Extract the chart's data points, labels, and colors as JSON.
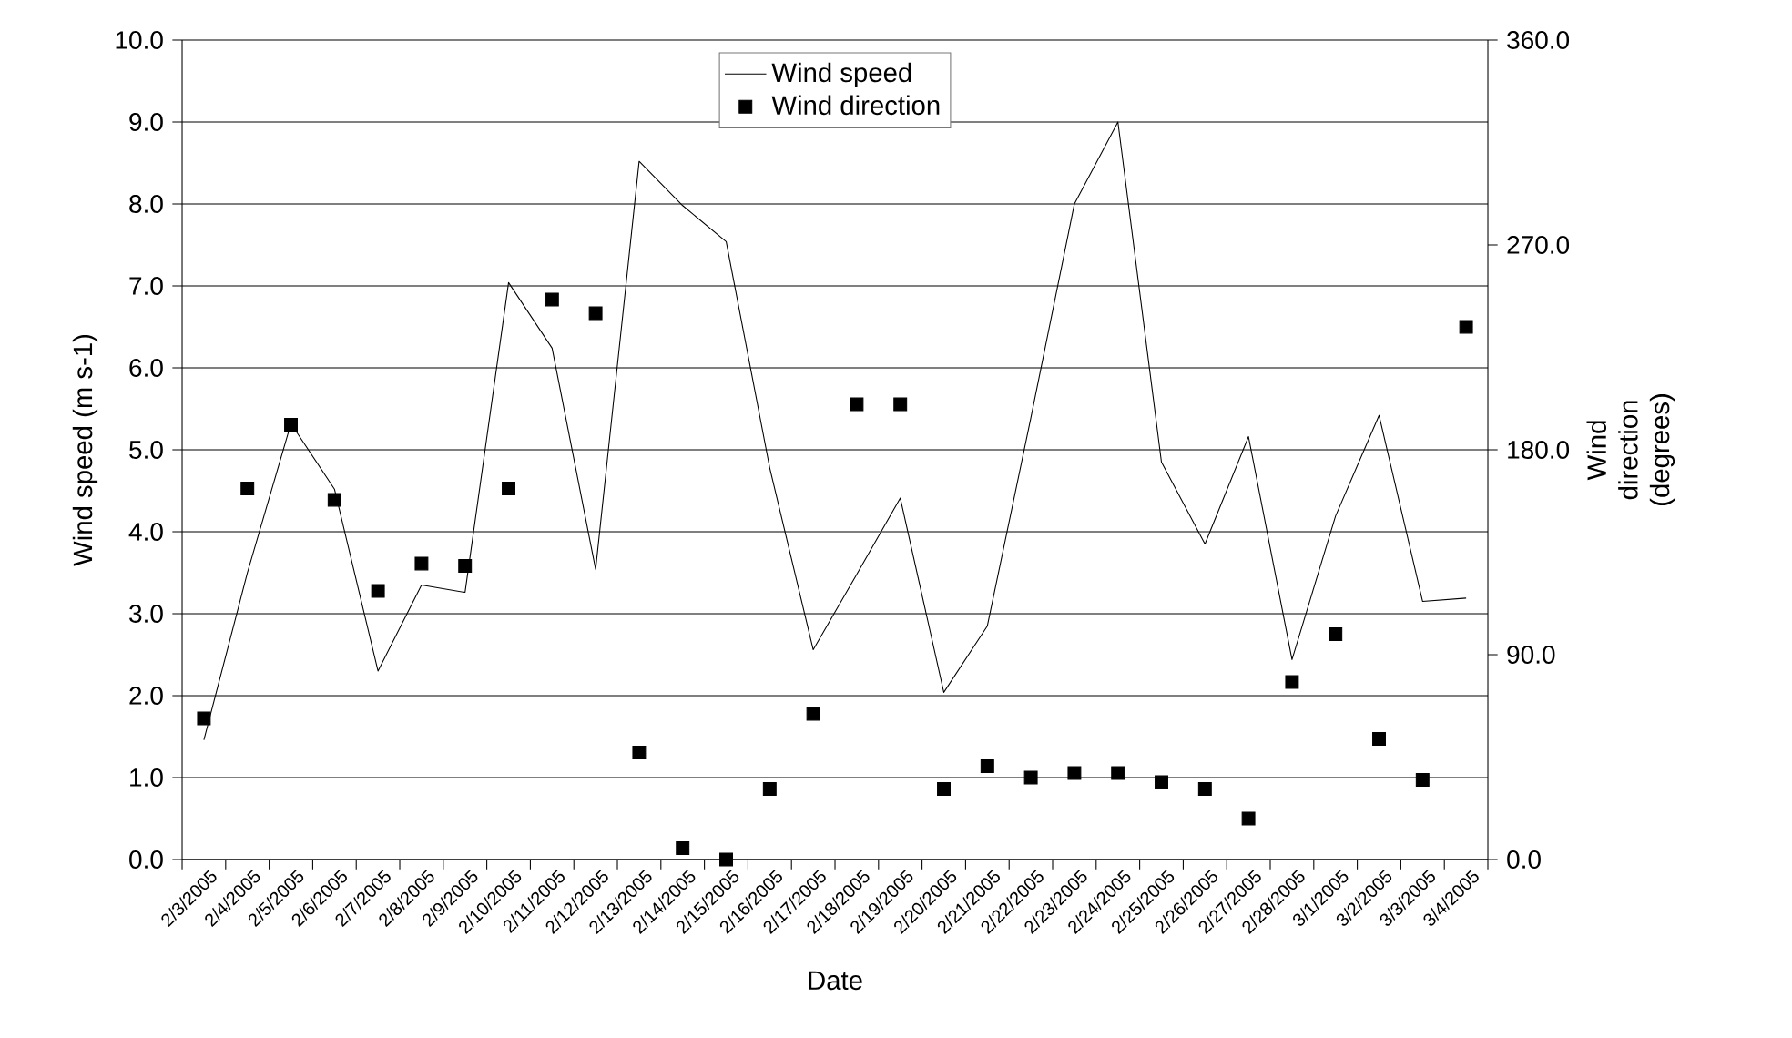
{
  "chart_data": {
    "type": "line",
    "xlabel": "Date",
    "ylabel": "Wind speed (m s-1)",
    "y2label": "Wind direction (degrees)",
    "categories": [
      "2/3/2005",
      "2/4/2005",
      "2/5/2005",
      "2/6/2005",
      "2/7/2005",
      "2/8/2005",
      "2/9/2005",
      "2/10/2005",
      "2/11/2005",
      "2/12/2005",
      "2/13/2005",
      "2/14/2005",
      "2/15/2005",
      "2/16/2005",
      "2/17/2005",
      "2/18/2005",
      "2/19/2005",
      "2/20/2005",
      "2/21/2005",
      "2/22/2005",
      "2/23/2005",
      "2/24/2005",
      "2/25/2005",
      "2/26/2005",
      "2/27/2005",
      "2/28/2005",
      "3/1/2005",
      "3/2/2005",
      "3/3/2005",
      "3/4/2005"
    ],
    "series": [
      {
        "name": "Wind speed",
        "color": "#000000",
        "marker": "none",
        "line_style": "solid",
        "values": [
          1.46,
          3.5,
          5.32,
          4.52,
          2.3,
          3.35,
          3.26,
          7.04,
          6.24,
          3.54,
          8.52,
          7.98,
          7.54,
          4.78,
          2.56,
          3.48,
          4.41,
          2.04,
          2.85,
          5.39,
          8.0,
          9.0,
          4.85,
          3.85,
          5.16,
          2.44,
          4.19,
          5.42,
          3.15,
          3.19
        ]
      },
      {
        "name": "Wind direction",
        "type": "scatter",
        "axis": "y2",
        "color": "#000000",
        "marker": "square",
        "values": [
          62,
          163,
          191,
          158,
          118,
          130,
          129,
          163,
          246,
          240,
          47,
          5,
          0,
          31,
          64,
          200,
          200,
          31,
          41,
          36,
          38,
          38,
          34,
          31,
          18,
          78,
          99,
          53,
          35,
          234
        ]
      }
    ],
    "ylim": [
      0,
      10
    ],
    "yticks": [
      {
        "value": 0,
        "label": "0.0"
      },
      {
        "value": 1,
        "label": "1.0"
      },
      {
        "value": 2,
        "label": "2.0"
      },
      {
        "value": 3,
        "label": "3.0"
      },
      {
        "value": 4,
        "label": "4.0"
      },
      {
        "value": 5,
        "label": "5.0"
      },
      {
        "value": 6,
        "label": "6.0"
      },
      {
        "value": 7,
        "label": "7.0"
      },
      {
        "value": 8,
        "label": "8.0"
      },
      {
        "value": 9,
        "label": "9.0"
      },
      {
        "value": 10,
        "label": "10.0"
      }
    ],
    "y2lim": [
      0,
      360
    ],
    "y2ticks": [
      {
        "value": 0,
        "label": "0.0"
      },
      {
        "value": 90,
        "label": "90.0"
      },
      {
        "value": 180,
        "label": "180.0"
      },
      {
        "value": 270,
        "label": "270.0"
      },
      {
        "value": 360,
        "label": "360.0"
      }
    ],
    "grid": "y",
    "legend": "top"
  }
}
